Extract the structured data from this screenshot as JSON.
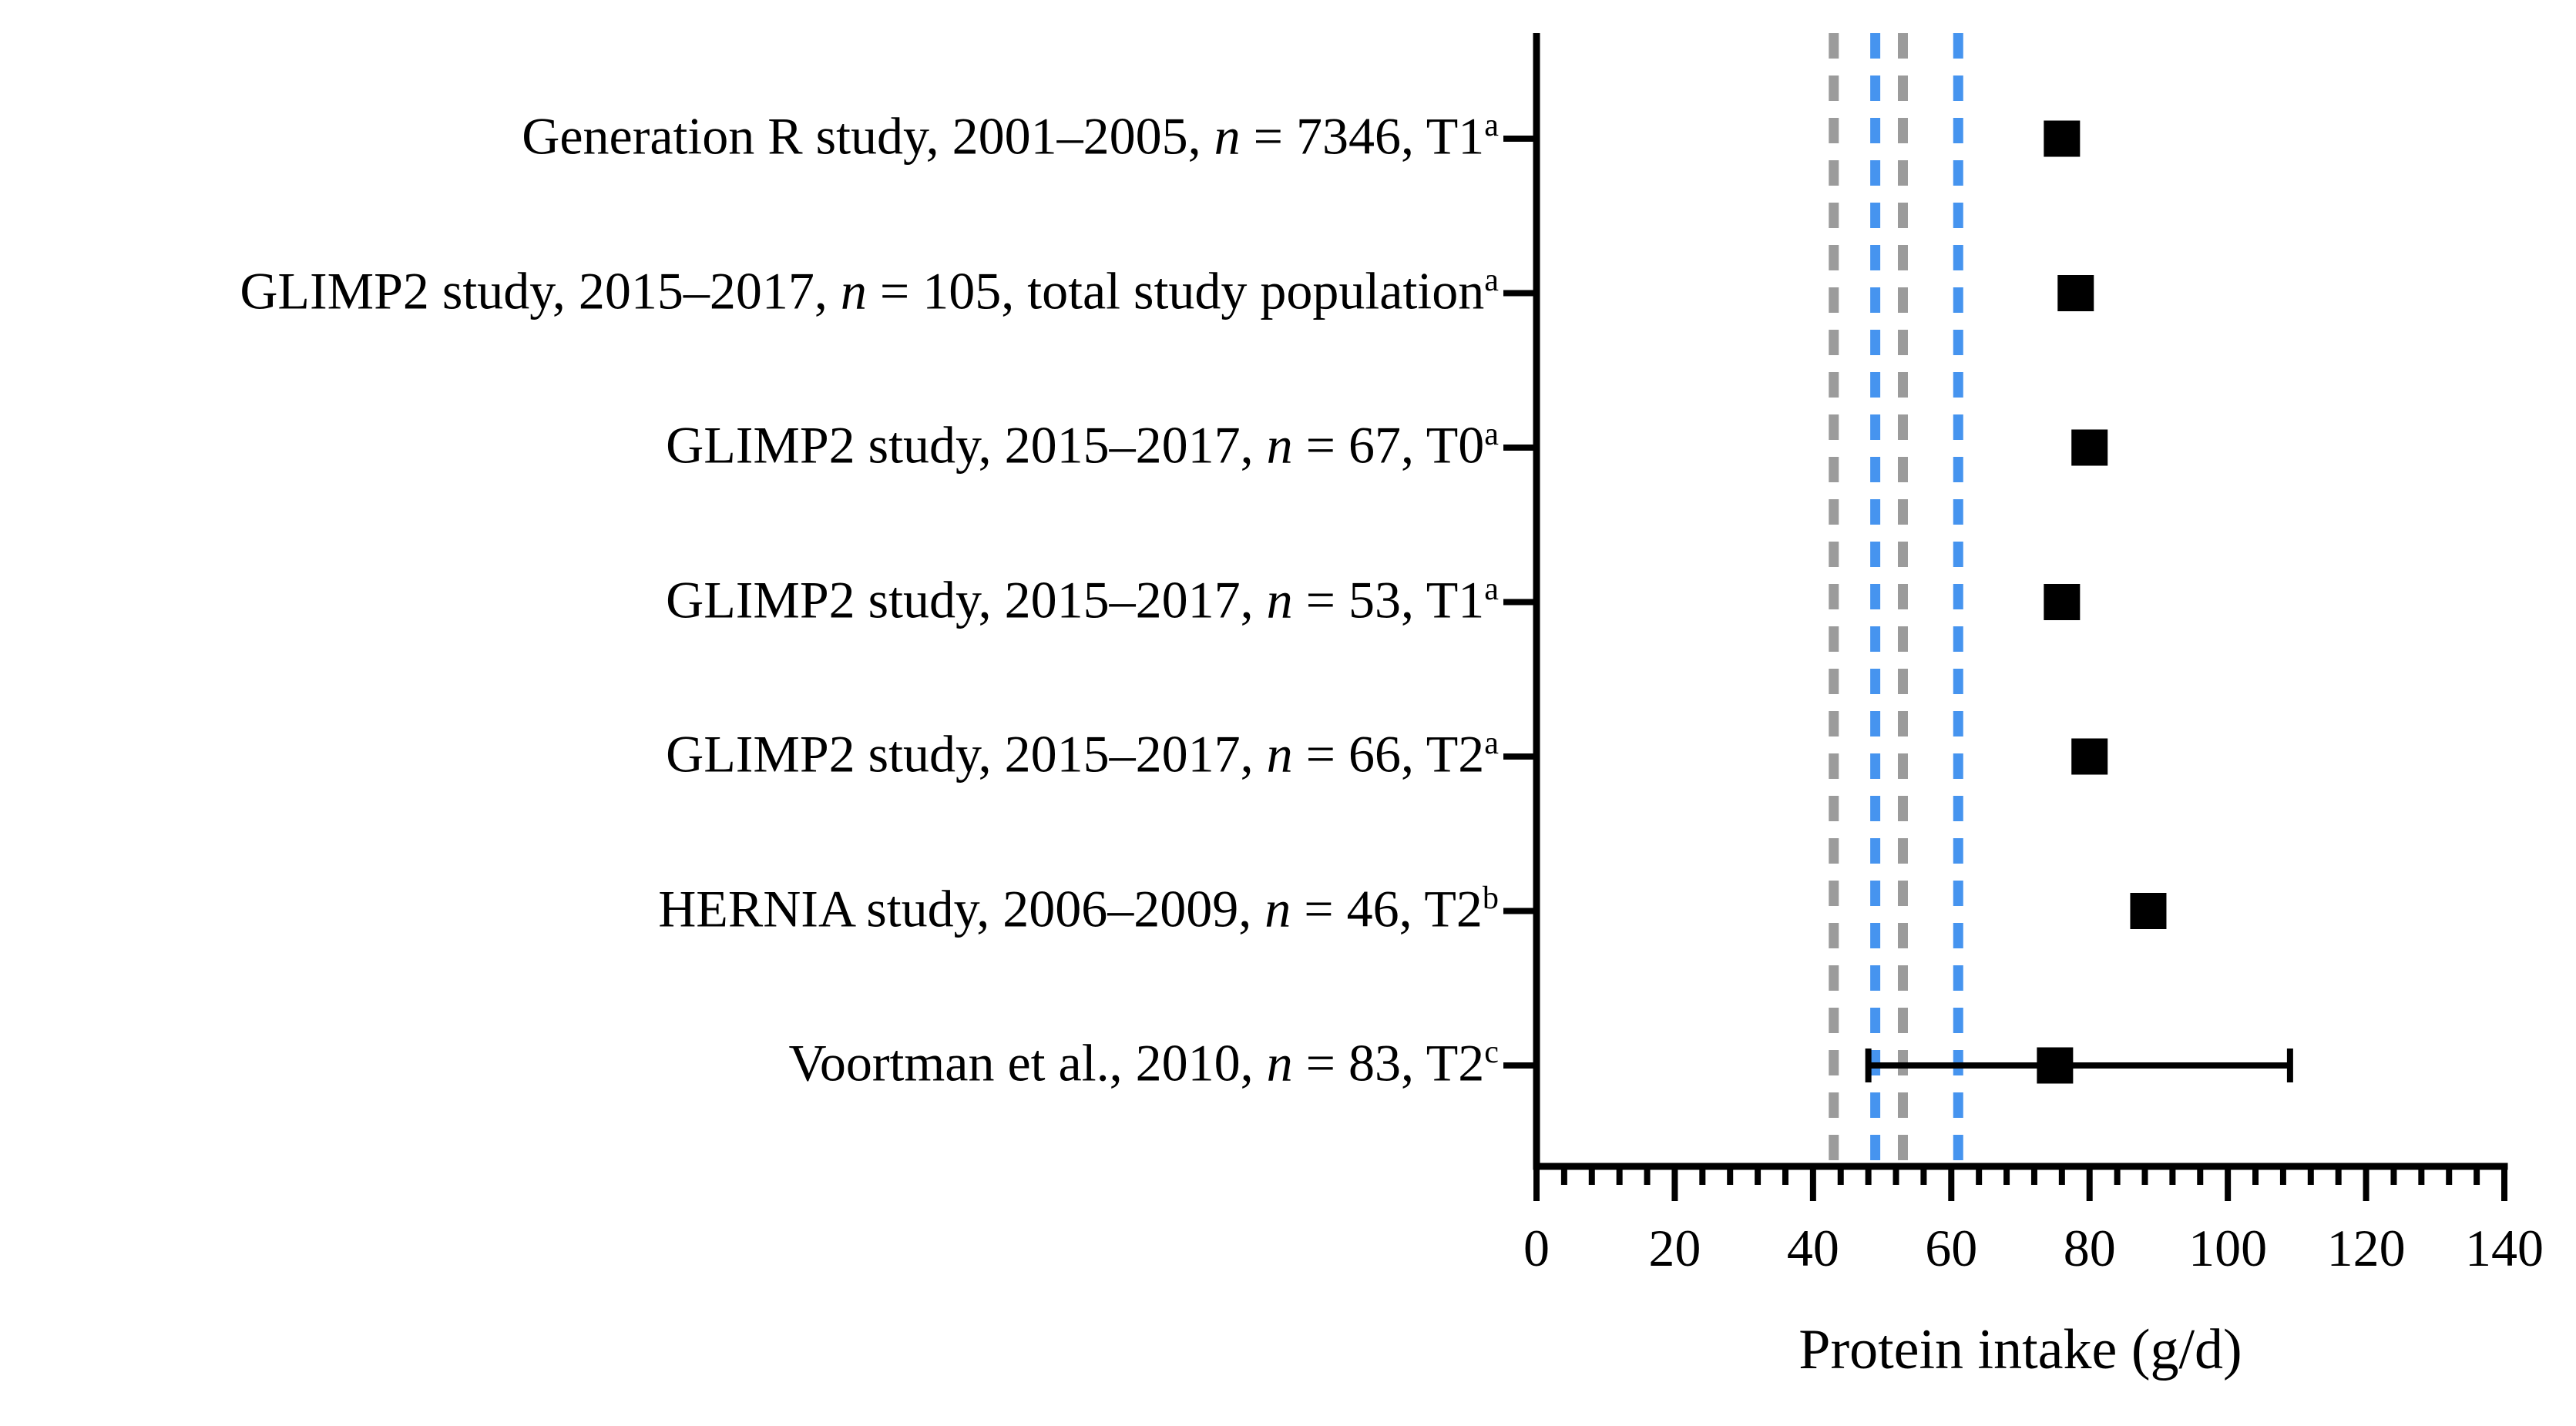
{
  "chart_data": {
    "type": "scatter",
    "subtype": "horizontal-forest-plot",
    "title": "",
    "xlabel": "Protein intake (g/d)",
    "ylabel": "",
    "xlim": [
      0,
      140
    ],
    "x_major_ticks": [
      0,
      20,
      40,
      60,
      80,
      100,
      120,
      140
    ],
    "x_minor_tick_step": 4,
    "grid": false,
    "legend": "none",
    "marker": {
      "shape": "square",
      "color": "#000000"
    },
    "reference_lines": [
      {
        "value": 43,
        "color": "#9b9b9b",
        "style": "dashed"
      },
      {
        "value": 49,
        "color": "#4694ef",
        "style": "dashed"
      },
      {
        "value": 53,
        "color": "#9b9b9b",
        "style": "dashed"
      },
      {
        "value": 61,
        "color": "#4694ef",
        "style": "dashed"
      }
    ],
    "rows": [
      {
        "parts": [
          {
            "t": "Generation R study, 2001–2005, "
          },
          {
            "t": "n",
            "i": true
          },
          {
            "t": " = 7346, T1"
          },
          {
            "t": "a",
            "sup": true
          }
        ],
        "value": 76
      },
      {
        "parts": [
          {
            "t": "GLIMP2 study, 2015–2017, "
          },
          {
            "t": "n",
            "i": true
          },
          {
            "t": " = 105, total study population"
          },
          {
            "t": "a",
            "sup": true
          }
        ],
        "value": 78
      },
      {
        "parts": [
          {
            "t": "GLIMP2 study, 2015–2017, "
          },
          {
            "t": "n",
            "i": true
          },
          {
            "t": " = 67, T0"
          },
          {
            "t": "a",
            "sup": true
          }
        ],
        "value": 80
      },
      {
        "parts": [
          {
            "t": "GLIMP2 study, 2015–2017, "
          },
          {
            "t": "n",
            "i": true
          },
          {
            "t": " = 53, T1"
          },
          {
            "t": "a",
            "sup": true
          }
        ],
        "value": 76
      },
      {
        "parts": [
          {
            "t": "GLIMP2 study, 2015–2017, "
          },
          {
            "t": "n",
            "i": true
          },
          {
            "t": " = 66, T2"
          },
          {
            "t": "a",
            "sup": true
          }
        ],
        "value": 80
      },
      {
        "parts": [
          {
            "t": "HERNIA study, 2006–2009, "
          },
          {
            "t": "n",
            "i": true
          },
          {
            "t": " = 46, T2"
          },
          {
            "t": "b",
            "sup": true
          }
        ],
        "value": 88.5
      },
      {
        "parts": [
          {
            "t": "Voortman et al., 2010, "
          },
          {
            "t": "n",
            "i": true
          },
          {
            "t": " = 83, T2"
          },
          {
            "t": "c",
            "sup": true
          }
        ],
        "value": 75,
        "ci_low": 48,
        "ci_high": 109
      }
    ],
    "axis_color": "#000000",
    "background": "#ffffff"
  }
}
